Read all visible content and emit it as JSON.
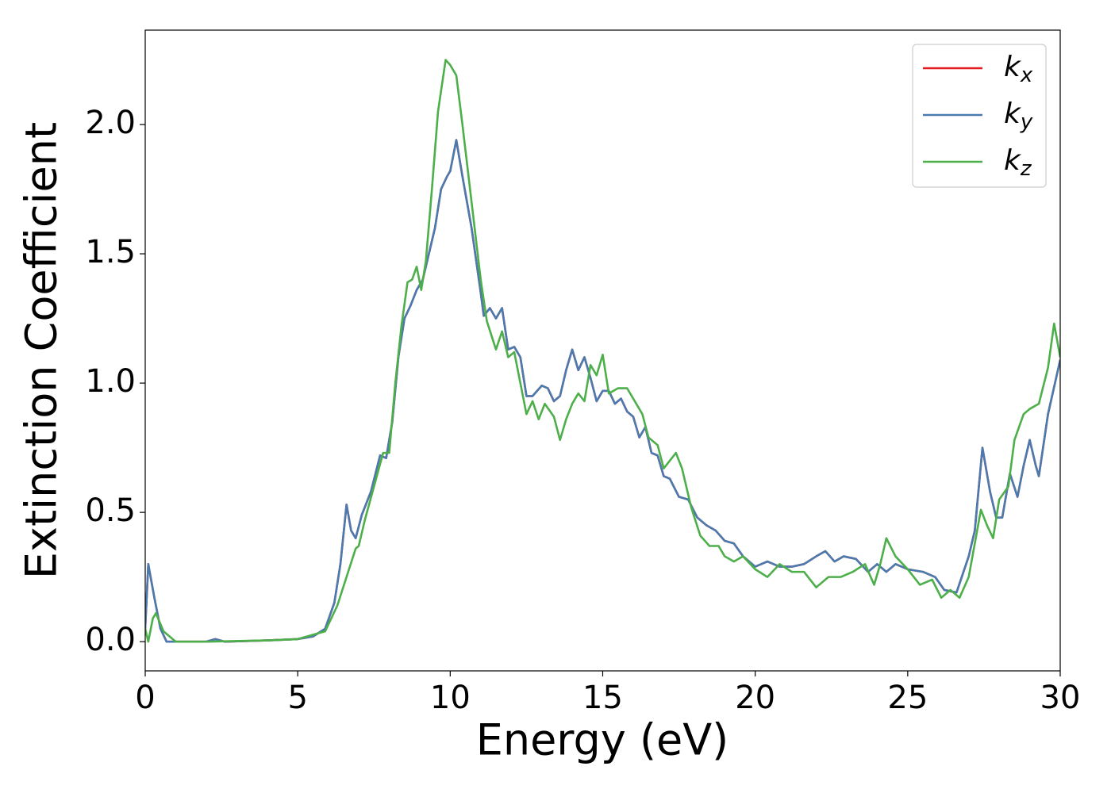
{
  "chart_data": {
    "type": "line",
    "xlabel": "Energy (eV)",
    "ylabel": "Extinction Coefficient",
    "xlim": [
      0,
      30
    ],
    "ylim": [
      -0.113,
      2.365
    ],
    "xticks": [
      0,
      5,
      10,
      15,
      20,
      25,
      30
    ],
    "yticks": [
      {
        "value": 0,
        "label": "0.0"
      },
      {
        "value": 0.5,
        "label": "0.5"
      },
      {
        "value": 1,
        "label": "1.0"
      },
      {
        "value": 1.5,
        "label": "1.5"
      },
      {
        "value": 2,
        "label": "2.0"
      }
    ],
    "legend": "upper right",
    "grid": false,
    "series": [
      {
        "name": "kx",
        "color": "#e41a1c",
        "x": [
          0,
          0.1,
          0.3,
          0.5,
          0.7,
          1,
          2,
          2.3,
          2.6,
          4,
          5,
          5.5,
          5.9,
          6.2,
          6.4,
          6.6,
          6.75,
          6.9,
          7.1,
          7.4,
          7.7,
          7.9,
          8.1,
          8.3,
          8.5,
          8.7,
          8.9,
          9.1,
          9.3,
          9.5,
          9.7,
          9.9,
          10,
          10.2,
          10.4,
          10.7,
          11,
          11.1,
          11.3,
          11.5,
          11.7,
          11.9,
          12.1,
          12.3,
          12.5,
          12.7,
          13,
          13.2,
          13.4,
          13.6,
          13.8,
          14,
          14.2,
          14.4,
          14.6,
          14.8,
          15,
          15.2,
          15.4,
          15.6,
          15.8,
          16,
          16.2,
          16.4,
          16.6,
          16.8,
          17,
          17.2,
          17.5,
          17.8,
          18.1,
          18.4,
          18.7,
          19,
          19.3,
          19.6,
          20,
          20.4,
          20.8,
          21.2,
          21.6,
          22,
          22.3,
          22.6,
          22.9,
          23.3,
          23.7,
          24,
          24.3,
          24.6,
          25,
          25.5,
          25.9,
          26.2,
          26.6,
          27,
          27.2,
          27.45,
          27.7,
          27.9,
          28.1,
          28.35,
          28.6,
          28.8,
          29,
          29.2,
          29.3,
          29.6,
          30
        ],
        "values": [
          0.05,
          0.3,
          0.17,
          0.05,
          0,
          0,
          0,
          0.01,
          0,
          0.005,
          0.01,
          0.02,
          0.05,
          0.15,
          0.3,
          0.53,
          0.43,
          0.4,
          0.49,
          0.58,
          0.72,
          0.71,
          0.85,
          1.1,
          1.25,
          1.3,
          1.36,
          1.4,
          1.5,
          1.6,
          1.75,
          1.8,
          1.82,
          1.94,
          1.8,
          1.6,
          1.35,
          1.26,
          1.29,
          1.25,
          1.29,
          1.13,
          1.14,
          1.1,
          0.95,
          0.95,
          0.99,
          0.98,
          0.93,
          0.95,
          1.05,
          1.13,
          1.05,
          1.1,
          1.02,
          0.93,
          0.97,
          0.97,
          0.92,
          0.94,
          0.89,
          0.87,
          0.79,
          0.83,
          0.73,
          0.72,
          0.64,
          0.63,
          0.56,
          0.55,
          0.48,
          0.45,
          0.43,
          0.39,
          0.38,
          0.33,
          0.29,
          0.31,
          0.29,
          0.29,
          0.3,
          0.33,
          0.35,
          0.31,
          0.33,
          0.32,
          0.27,
          0.3,
          0.27,
          0.3,
          0.28,
          0.27,
          0.25,
          0.2,
          0.19,
          0.33,
          0.43,
          0.75,
          0.58,
          0.48,
          0.48,
          0.65,
          0.56,
          0.68,
          0.78,
          0.68,
          0.64,
          0.88,
          1.09
        ]
      },
      {
        "name": "ky",
        "color": "#4a7bb0",
        "x": [
          0,
          0.1,
          0.3,
          0.5,
          0.7,
          1,
          2,
          2.3,
          2.6,
          4,
          5,
          5.5,
          5.9,
          6.2,
          6.4,
          6.6,
          6.75,
          6.9,
          7.1,
          7.4,
          7.7,
          7.9,
          8.1,
          8.3,
          8.5,
          8.7,
          8.9,
          9.1,
          9.3,
          9.5,
          9.7,
          9.9,
          10,
          10.2,
          10.4,
          10.7,
          11,
          11.1,
          11.3,
          11.5,
          11.7,
          11.9,
          12.1,
          12.3,
          12.5,
          12.7,
          13,
          13.2,
          13.4,
          13.6,
          13.8,
          14,
          14.2,
          14.4,
          14.6,
          14.8,
          15,
          15.2,
          15.4,
          15.6,
          15.8,
          16,
          16.2,
          16.4,
          16.6,
          16.8,
          17,
          17.2,
          17.5,
          17.8,
          18.1,
          18.4,
          18.7,
          19,
          19.3,
          19.6,
          20,
          20.4,
          20.8,
          21.2,
          21.6,
          22,
          22.3,
          22.6,
          22.9,
          23.3,
          23.7,
          24,
          24.3,
          24.6,
          25,
          25.5,
          25.9,
          26.2,
          26.6,
          27,
          27.2,
          27.45,
          27.7,
          27.9,
          28.1,
          28.35,
          28.6,
          28.8,
          29,
          29.2,
          29.3,
          29.6,
          30
        ],
        "values": [
          0.05,
          0.3,
          0.17,
          0.05,
          0,
          0,
          0,
          0.01,
          0,
          0.005,
          0.01,
          0.02,
          0.05,
          0.15,
          0.3,
          0.53,
          0.43,
          0.4,
          0.49,
          0.58,
          0.72,
          0.71,
          0.85,
          1.1,
          1.25,
          1.3,
          1.36,
          1.4,
          1.5,
          1.6,
          1.75,
          1.8,
          1.82,
          1.94,
          1.8,
          1.6,
          1.35,
          1.26,
          1.29,
          1.25,
          1.29,
          1.13,
          1.14,
          1.1,
          0.95,
          0.95,
          0.99,
          0.98,
          0.93,
          0.95,
          1.05,
          1.13,
          1.05,
          1.1,
          1.02,
          0.93,
          0.97,
          0.97,
          0.92,
          0.94,
          0.89,
          0.87,
          0.79,
          0.83,
          0.73,
          0.72,
          0.64,
          0.63,
          0.56,
          0.55,
          0.48,
          0.45,
          0.43,
          0.39,
          0.38,
          0.33,
          0.29,
          0.31,
          0.29,
          0.29,
          0.3,
          0.33,
          0.35,
          0.31,
          0.33,
          0.32,
          0.27,
          0.3,
          0.27,
          0.3,
          0.28,
          0.27,
          0.25,
          0.2,
          0.19,
          0.33,
          0.43,
          0.75,
          0.58,
          0.48,
          0.48,
          0.65,
          0.56,
          0.68,
          0.78,
          0.68,
          0.64,
          0.88,
          1.09
        ]
      },
      {
        "name": "kz",
        "color": "#4daf4a",
        "x": [
          0,
          0.1,
          0.25,
          0.35,
          0.6,
          1,
          2,
          4,
          5,
          5.9,
          6.3,
          6.6,
          6.9,
          7,
          7.2,
          7.5,
          7.8,
          8,
          8.2,
          8.4,
          8.6,
          8.75,
          8.9,
          9.05,
          9.2,
          9.4,
          9.6,
          9.85,
          10,
          10.2,
          10.4,
          10.7,
          11,
          11.2,
          11.5,
          11.7,
          11.9,
          12.1,
          12.3,
          12.5,
          12.7,
          12.9,
          13.1,
          13.4,
          13.6,
          13.8,
          14,
          14.2,
          14.4,
          14.6,
          14.8,
          15,
          15.2,
          15.5,
          15.8,
          16,
          16.3,
          16.5,
          16.8,
          17,
          17.2,
          17.4,
          17.6,
          17.9,
          18.2,
          18.5,
          18.8,
          19,
          19.3,
          19.6,
          20,
          20.4,
          20.8,
          21.2,
          21.6,
          22,
          22.4,
          22.8,
          23.2,
          23.6,
          23.9,
          24.1,
          24.3,
          24.6,
          25,
          25.4,
          25.8,
          26.1,
          26.4,
          26.7,
          27,
          27.2,
          27.4,
          27.6,
          27.8,
          28,
          28.3,
          28.5,
          28.8,
          29,
          29.3,
          29.6,
          29.8,
          30
        ],
        "values": [
          0.05,
          0,
          0.09,
          0.11,
          0.04,
          0,
          0,
          0.005,
          0.01,
          0.04,
          0.14,
          0.25,
          0.36,
          0.37,
          0.47,
          0.6,
          0.73,
          0.73,
          1,
          1.22,
          1.39,
          1.4,
          1.45,
          1.36,
          1.47,
          1.75,
          2.05,
          2.25,
          2.23,
          2.19,
          2,
          1.7,
          1.4,
          1.24,
          1.13,
          1.2,
          1.1,
          1.12,
          1,
          0.88,
          0.93,
          0.86,
          0.92,
          0.87,
          0.78,
          0.86,
          0.92,
          0.96,
          0.93,
          1.07,
          1.03,
          1.11,
          0.96,
          0.98,
          0.98,
          0.94,
          0.88,
          0.79,
          0.76,
          0.67,
          0.7,
          0.73,
          0.67,
          0.52,
          0.41,
          0.37,
          0.37,
          0.33,
          0.31,
          0.33,
          0.28,
          0.25,
          0.3,
          0.27,
          0.27,
          0.21,
          0.25,
          0.25,
          0.27,
          0.3,
          0.22,
          0.3,
          0.4,
          0.33,
          0.28,
          0.22,
          0.24,
          0.17,
          0.2,
          0.17,
          0.25,
          0.38,
          0.51,
          0.45,
          0.4,
          0.55,
          0.6,
          0.78,
          0.88,
          0.9,
          0.92,
          1.06,
          1.23,
          1.1
        ]
      }
    ]
  }
}
